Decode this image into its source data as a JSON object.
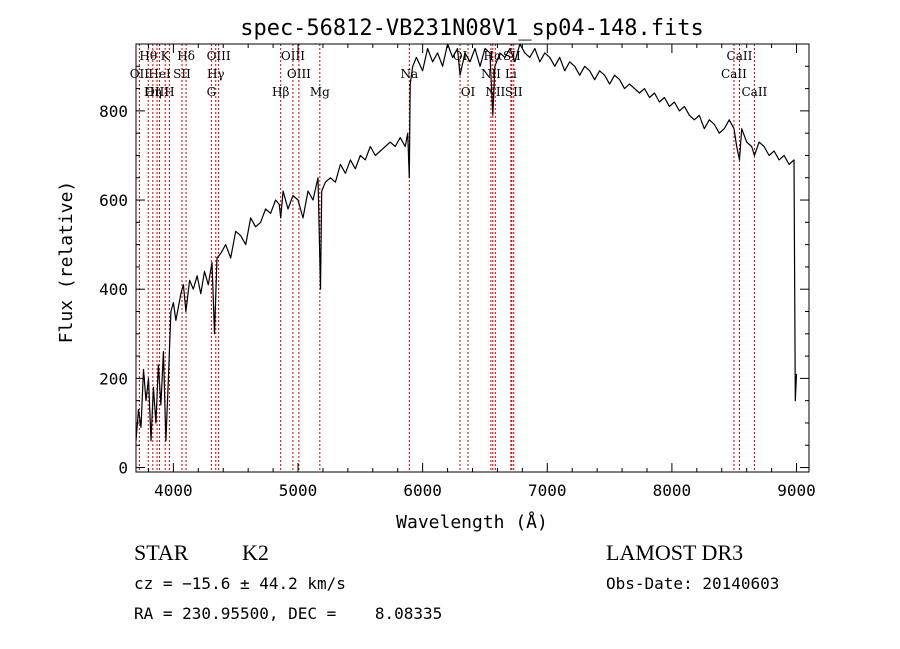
{
  "chart_data": {
    "type": "line",
    "title": "spec-56812-VB231N08V1_sp04-148.fits",
    "xlabel": "Wavelength (Å)",
    "ylabel": "Flux (relative)",
    "xlim": [
      3700,
      9100
    ],
    "ylim": [
      -10,
      950
    ],
    "x_ticks": [
      4000,
      5000,
      6000,
      7000,
      8000,
      9000
    ],
    "x_tick_labels": [
      "4000",
      "5000",
      "6000",
      "7000",
      "8000",
      "9000"
    ],
    "y_ticks": [
      0,
      200,
      400,
      600,
      800
    ],
    "y_tick_labels": [
      "0",
      "200",
      "400",
      "600",
      "800"
    ],
    "spectrum": {
      "name": "flux",
      "x": [
        3700,
        3720,
        3740,
        3760,
        3780,
        3800,
        3820,
        3840,
        3860,
        3880,
        3900,
        3920,
        3940,
        3960,
        3980,
        4000,
        4020,
        4040,
        4060,
        4080,
        4100,
        4130,
        4160,
        4190,
        4220,
        4250,
        4280,
        4310,
        4330,
        4350,
        4380,
        4420,
        4460,
        4500,
        4540,
        4580,
        4620,
        4660,
        4700,
        4740,
        4780,
        4820,
        4850,
        4861,
        4880,
        4920,
        4960,
        5000,
        5040,
        5080,
        5120,
        5160,
        5180,
        5190,
        5220,
        5260,
        5300,
        5340,
        5380,
        5420,
        5460,
        5500,
        5540,
        5580,
        5620,
        5660,
        5700,
        5740,
        5780,
        5800,
        5820,
        5860,
        5880,
        5893,
        5900,
        5920,
        5950,
        6000,
        6040,
        6080,
        6120,
        6160,
        6200,
        6240,
        6280,
        6300,
        6340,
        6380,
        6420,
        6460,
        6500,
        6540,
        6563,
        6580,
        6620,
        6660,
        6700,
        6740,
        6780,
        6820,
        6860,
        6900,
        6940,
        6980,
        7020,
        7060,
        7100,
        7140,
        7180,
        7220,
        7260,
        7300,
        7340,
        7380,
        7420,
        7460,
        7500,
        7540,
        7580,
        7620,
        7660,
        7700,
        7740,
        7780,
        7820,
        7860,
        7900,
        7940,
        7980,
        8020,
        8060,
        8100,
        8140,
        8180,
        8220,
        8260,
        8300,
        8340,
        8380,
        8420,
        8460,
        8498,
        8520,
        8542,
        8560,
        8600,
        8640,
        8662,
        8700,
        8740,
        8780,
        8820,
        8860,
        8900,
        8940,
        8980,
        8990,
        9000
      ],
      "y": [
        60,
        130,
        90,
        220,
        150,
        200,
        60,
        180,
        100,
        230,
        140,
        260,
        60,
        200,
        350,
        370,
        330,
        360,
        390,
        410,
        350,
        420,
        400,
        430,
        390,
        440,
        410,
        460,
        300,
        470,
        480,
        500,
        470,
        530,
        520,
        500,
        560,
        540,
        550,
        580,
        570,
        600,
        590,
        560,
        620,
        580,
        610,
        600,
        560,
        620,
        600,
        650,
        400,
        620,
        640,
        650,
        640,
        680,
        660,
        690,
        670,
        700,
        690,
        720,
        700,
        710,
        720,
        730,
        720,
        730,
        740,
        720,
        750,
        650,
        860,
        900,
        920,
        890,
        940,
        910,
        930,
        900,
        950,
        920,
        940,
        880,
        930,
        910,
        940,
        900,
        940,
        930,
        790,
        900,
        930,
        920,
        940,
        910,
        950,
        930,
        920,
        940,
        910,
        930,
        920,
        900,
        920,
        890,
        910,
        900,
        880,
        900,
        890,
        870,
        890,
        880,
        860,
        880,
        870,
        850,
        860,
        850,
        840,
        850,
        830,
        840,
        820,
        830,
        810,
        820,
        800,
        810,
        790,
        780,
        790,
        760,
        780,
        770,
        750,
        760,
        780,
        760,
        720,
        690,
        760,
        730,
        720,
        700,
        730,
        720,
        700,
        710,
        690,
        700,
        680,
        690,
        150,
        210
      ]
    },
    "line_annotations": [
      {
        "label": "Hθ",
        "x": 3798,
        "row": 0
      },
      {
        "label": "OII",
        "x": 3727,
        "row": 1
      },
      {
        "label": "OIII",
        "x": 3869,
        "row": 2
      },
      {
        "label": "HeI",
        "x": 3889,
        "row": 1
      },
      {
        "label": "Hη",
        "x": 3835,
        "row": 2
      },
      {
        "label": "K",
        "x": 3934,
        "row": 0
      },
      {
        "label": "SII",
        "x": 4069,
        "row": 1
      },
      {
        "label": "H",
        "x": 3968,
        "row": 2
      },
      {
        "label": "Hδ",
        "x": 4102,
        "row": 0
      },
      {
        "label": "OIII",
        "x": 4363,
        "row": 0
      },
      {
        "label": "Hγ",
        "x": 4340,
        "row": 1
      },
      {
        "label": "G",
        "x": 4305,
        "row": 2
      },
      {
        "label": "OIII",
        "x": 4959,
        "row": 0
      },
      {
        "label": "OIII",
        "x": 5007,
        "row": 1
      },
      {
        "label": "Hβ",
        "x": 4861,
        "row": 2
      },
      {
        "label": "Mg",
        "x": 5175,
        "row": 2
      },
      {
        "label": "Na",
        "x": 5893,
        "row": 1
      },
      {
        "label": "OI",
        "x": 6300,
        "row": 0
      },
      {
        "label": "OI",
        "x": 6364,
        "row": 2
      },
      {
        "label": "NII",
        "x": 6548,
        "row": 1
      },
      {
        "label": "Hα",
        "x": 6563,
        "row": 0
      },
      {
        "label": "NII",
        "x": 6583,
        "row": 2
      },
      {
        "label": "SII",
        "x": 6716,
        "row": 0
      },
      {
        "label": "Li",
        "x": 6708,
        "row": 1
      },
      {
        "label": "SII",
        "x": 6731,
        "row": 2
      },
      {
        "label": "CaII",
        "x": 8542,
        "row": 0
      },
      {
        "label": "CaII",
        "x": 8498,
        "row": 1
      },
      {
        "label": "CaII",
        "x": 8662,
        "row": 2
      }
    ],
    "line_color": "#000000",
    "annotation_color": "#cc0000"
  },
  "info": {
    "object_class": "STAR",
    "subclass": "K2",
    "survey": "LAMOST DR3",
    "redshift_text": "cz = −15.6 ± 44.2 km/s",
    "obs_date": "Obs-Date: 20140603",
    "coords": "RA = 230.95500, DEC =    8.08335"
  }
}
